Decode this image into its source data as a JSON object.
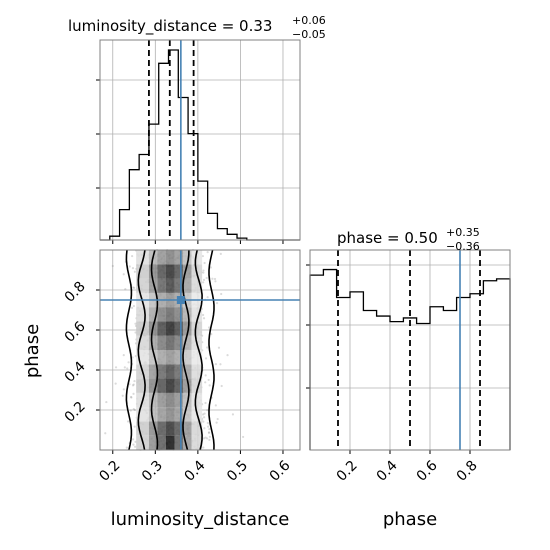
{
  "chart_data": [
    {
      "type": "histogram",
      "panel": "luminosity_distance",
      "title": {
        "label": "luminosity_distance = 0.33",
        "plus": "+0.06",
        "minus": "−0.05"
      },
      "xlim": [
        0.17,
        0.64
      ],
      "bins": [
        {
          "x0": 0.17,
          "x1": 0.193,
          "density": 0.0
        },
        {
          "x0": 0.193,
          "x1": 0.216,
          "density": 0.02
        },
        {
          "x0": 0.216,
          "x1": 0.239,
          "density": 0.16
        },
        {
          "x0": 0.239,
          "x1": 0.262,
          "density": 0.37
        },
        {
          "x0": 0.262,
          "x1": 0.285,
          "density": 0.45
        },
        {
          "x0": 0.285,
          "x1": 0.308,
          "density": 0.61
        },
        {
          "x0": 0.308,
          "x1": 0.331,
          "density": 0.93
        },
        {
          "x0": 0.331,
          "x1": 0.354,
          "density": 1.0
        },
        {
          "x0": 0.354,
          "x1": 0.377,
          "density": 0.75
        },
        {
          "x0": 0.377,
          "x1": 0.4,
          "density": 0.56
        },
        {
          "x0": 0.4,
          "x1": 0.423,
          "density": 0.31
        },
        {
          "x0": 0.423,
          "x1": 0.446,
          "density": 0.14
        },
        {
          "x0": 0.446,
          "x1": 0.469,
          "density": 0.06
        },
        {
          "x0": 0.469,
          "x1": 0.492,
          "density": 0.03
        },
        {
          "x0": 0.492,
          "x1": 0.515,
          "density": 0.01
        },
        {
          "x0": 0.515,
          "x1": 0.64,
          "density": 0.0
        }
      ],
      "quantiles": [
        0.285,
        0.334,
        0.39
      ],
      "truth": 0.36
    },
    {
      "type": "histogram",
      "panel": "phase",
      "title": {
        "label": "phase = 0.50",
        "plus": "+0.35",
        "minus": "−0.36"
      },
      "xlim": [
        0.0,
        1.0
      ],
      "bins": [
        {
          "x0": 0.0,
          "x1": 0.067,
          "density": 0.94
        },
        {
          "x0": 0.067,
          "x1": 0.133,
          "density": 0.97
        },
        {
          "x0": 0.133,
          "x1": 0.2,
          "density": 0.82
        },
        {
          "x0": 0.2,
          "x1": 0.267,
          "density": 0.85
        },
        {
          "x0": 0.267,
          "x1": 0.333,
          "density": 0.75
        },
        {
          "x0": 0.333,
          "x1": 0.4,
          "density": 0.72
        },
        {
          "x0": 0.4,
          "x1": 0.467,
          "density": 0.69
        },
        {
          "x0": 0.467,
          "x1": 0.533,
          "density": 0.71
        },
        {
          "x0": 0.533,
          "x1": 0.6,
          "density": 0.68
        },
        {
          "x0": 0.6,
          "x1": 0.667,
          "density": 0.77
        },
        {
          "x0": 0.667,
          "x1": 0.733,
          "density": 0.75
        },
        {
          "x0": 0.733,
          "x1": 0.8,
          "density": 0.82
        },
        {
          "x0": 0.8,
          "x1": 0.867,
          "density": 0.84
        },
        {
          "x0": 0.867,
          "x1": 0.933,
          "density": 0.91
        },
        {
          "x0": 0.933,
          "x1": 1.0,
          "density": 0.92
        }
      ],
      "quantiles": [
        0.14,
        0.5,
        0.85
      ],
      "truth": 0.75
    },
    {
      "type": "heatmap",
      "panel": "luminosity_distance_vs_phase",
      "xlabel": "luminosity_distance",
      "ylabel": "phase",
      "xlim": [
        0.17,
        0.64
      ],
      "ylim": [
        0.0,
        1.0
      ],
      "xticks": [
        "0.2",
        "0.3",
        "0.4",
        "0.5",
        "0.6"
      ],
      "xtick_values": [
        0.2,
        0.3,
        0.4,
        0.5,
        0.6
      ],
      "yticks": [
        "0.2",
        "0.4",
        "0.6",
        "0.8"
      ],
      "ytick_values": [
        0.2,
        0.4,
        0.6,
        0.8
      ],
      "truth": {
        "x": 0.36,
        "y": 0.75
      },
      "colors": {
        "truth": "#4682b4",
        "contour": "#000000",
        "scatter": "#999999"
      }
    },
    {
      "type": "axis",
      "panel": "phase_xaxis",
      "xticks": [
        "0.2",
        "0.4",
        "0.6",
        "0.8"
      ],
      "xtick_values": [
        0.2,
        0.4,
        0.6,
        0.8
      ]
    }
  ]
}
